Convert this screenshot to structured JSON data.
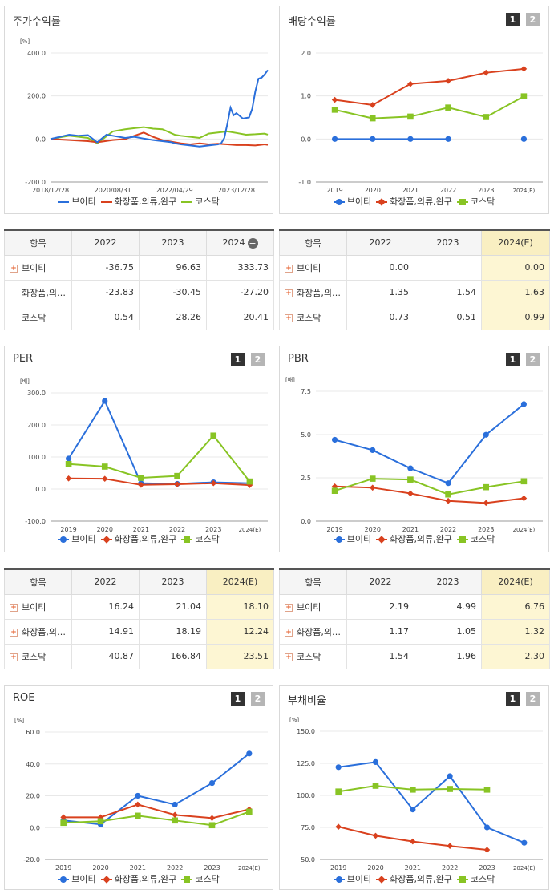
{
  "colors": {
    "s1": "#2a6fdb",
    "s2": "#d9411e",
    "s3": "#88c424"
  },
  "legend": [
    "브이티",
    "화장품,의류,완구",
    "코스닥"
  ],
  "panels": {
    "stock": {
      "title": "주가수익률"
    },
    "div": {
      "title": "배당수익률",
      "pages": [
        "1",
        "2"
      ]
    },
    "per": {
      "title": "PER",
      "pages": [
        "1",
        "2"
      ]
    },
    "pbr": {
      "title": "PBR",
      "pages": [
        "1",
        "2"
      ]
    },
    "roe": {
      "title": "ROE",
      "pages": [
        "1",
        "2"
      ]
    },
    "debt": {
      "title": "부채비율",
      "pages": [
        "1",
        "2"
      ]
    }
  },
  "tables": {
    "stock": {
      "header": [
        "항목",
        "2022",
        "2023",
        "2024"
      ],
      "collapse_icon": "minus-circle-icon",
      "rows": [
        {
          "name": "브이티",
          "expand": true,
          "values": [
            "-36.75",
            "96.63",
            "333.73"
          ]
        },
        {
          "name": "화장품,의…",
          "expand": false,
          "values": [
            "-23.83",
            "-30.45",
            "-27.20"
          ]
        },
        {
          "name": "코스닥",
          "expand": false,
          "values": [
            "0.54",
            "28.26",
            "20.41"
          ]
        }
      ]
    },
    "div": {
      "header": [
        "항목",
        "2022",
        "2023",
        "2024(E)"
      ],
      "rows": [
        {
          "name": "브이티",
          "values": [
            "0.00",
            "",
            "0.00"
          ]
        },
        {
          "name": "화장품,의…",
          "values": [
            "1.35",
            "1.54",
            "1.63"
          ]
        },
        {
          "name": "코스닥",
          "values": [
            "0.73",
            "0.51",
            "0.99"
          ]
        }
      ]
    },
    "per": {
      "header": [
        "항목",
        "2022",
        "2023",
        "2024(E)"
      ],
      "rows": [
        {
          "name": "브이티",
          "values": [
            "16.24",
            "21.04",
            "18.10"
          ]
        },
        {
          "name": "화장품,의…",
          "values": [
            "14.91",
            "18.19",
            "12.24"
          ]
        },
        {
          "name": "코스닥",
          "values": [
            "40.87",
            "166.84",
            "23.51"
          ]
        }
      ]
    },
    "pbr": {
      "header": [
        "항목",
        "2022",
        "2023",
        "2024(E)"
      ],
      "rows": [
        {
          "name": "브이티",
          "values": [
            "2.19",
            "4.99",
            "6.76"
          ]
        },
        {
          "name": "화장품,의…",
          "values": [
            "1.17",
            "1.05",
            "1.32"
          ]
        },
        {
          "name": "코스닥",
          "values": [
            "1.54",
            "1.96",
            "2.30"
          ]
        }
      ]
    }
  },
  "chart_data": [
    {
      "id": "stock",
      "type": "line",
      "title": "주가수익률",
      "unit": "[%]",
      "ylim": [
        -200,
        400
      ],
      "yticks": [
        -200,
        0,
        200,
        400
      ],
      "ytick_labels": [
        "-200.0",
        "0.0",
        "200.0",
        "400.0"
      ],
      "xlim": [
        "2018-12-28",
        "2024-10-31"
      ],
      "xtick_labels": [
        "2018/12/28",
        "2020/08/31",
        "2022/04/29",
        "2023/12/28"
      ],
      "series": [
        {
          "name": "브이티",
          "color": "#2a6fdb",
          "x": [
            "2018-12-28",
            "2019-03-31",
            "2019-06-30",
            "2019-09-30",
            "2019-12-31",
            "2020-03-31",
            "2020-06-30",
            "2020-08-31",
            "2020-12-31",
            "2021-03-31",
            "2021-06-30",
            "2021-09-30",
            "2021-12-31",
            "2022-03-31",
            "2022-04-29",
            "2022-06-30",
            "2022-09-30",
            "2022-12-31",
            "2023-03-31",
            "2023-06-30",
            "2023-07-31",
            "2023-08-31",
            "2023-09-30",
            "2023-10-31",
            "2023-11-30",
            "2023-12-28",
            "2024-02-29",
            "2024-04-30",
            "2024-05-31",
            "2024-06-30",
            "2024-07-31",
            "2024-08-31",
            "2024-09-30",
            "2024-10-31"
          ],
          "y": [
            0,
            10,
            20,
            15,
            18,
            -15,
            20,
            15,
            5,
            10,
            2,
            -5,
            -10,
            -15,
            -20,
            -25,
            -30,
            -35,
            -30,
            -25,
            -20,
            5,
            70,
            145,
            110,
            120,
            95,
            100,
            140,
            220,
            280,
            285,
            300,
            320
          ]
        },
        {
          "name": "화장품,의류,완구",
          "color": "#d9411e",
          "x": [
            "2018-12-28",
            "2019-06-30",
            "2019-12-31",
            "2020-03-31",
            "2020-08-31",
            "2020-12-31",
            "2021-03-31",
            "2021-06-30",
            "2021-09-30",
            "2021-12-31",
            "2022-04-29",
            "2022-06-30",
            "2022-09-30",
            "2022-12-31",
            "2023-03-31",
            "2023-06-30",
            "2023-09-30",
            "2023-12-28",
            "2024-03-31",
            "2024-06-30",
            "2024-09-30",
            "2024-10-31"
          ],
          "y": [
            0,
            -5,
            -10,
            -15,
            -5,
            0,
            15,
            30,
            10,
            -5,
            -15,
            -20,
            -25,
            -20,
            -25,
            -22,
            -25,
            -28,
            -28,
            -30,
            -25,
            -27
          ]
        },
        {
          "name": "코스닥",
          "color": "#88c424",
          "x": [
            "2018-12-28",
            "2019-06-30",
            "2019-12-31",
            "2020-03-31",
            "2020-08-31",
            "2020-12-31",
            "2021-03-31",
            "2021-06-30",
            "2021-09-30",
            "2021-12-31",
            "2022-04-29",
            "2022-06-30",
            "2022-09-30",
            "2022-12-31",
            "2023-03-31",
            "2023-06-30",
            "2023-09-30",
            "2023-12-28",
            "2024-03-31",
            "2024-06-30",
            "2024-09-30",
            "2024-10-31"
          ],
          "y": [
            0,
            15,
            5,
            -20,
            35,
            45,
            50,
            55,
            48,
            45,
            20,
            15,
            10,
            5,
            25,
            30,
            35,
            28,
            20,
            22,
            25,
            20
          ]
        }
      ]
    },
    {
      "id": "div",
      "type": "line",
      "title": "배당수익률",
      "ylim": [
        -1,
        2
      ],
      "yticks": [
        -1,
        0,
        1,
        2
      ],
      "ytick_labels": [
        "-1.0",
        "0.0",
        "1.0",
        "2.0"
      ],
      "categories": [
        "2019",
        "2020",
        "2021",
        "2022",
        "2023",
        "2024(E)"
      ],
      "series": [
        {
          "name": "브이티",
          "color": "#2a6fdb",
          "marker": "circle",
          "values": [
            0.0,
            0.0,
            0.0,
            0.0,
            null,
            0.0
          ]
        },
        {
          "name": "화장품,의류,완구",
          "color": "#d9411e",
          "marker": "diamond",
          "values": [
            0.91,
            0.79,
            1.28,
            1.35,
            1.54,
            1.63
          ]
        },
        {
          "name": "코스닥",
          "color": "#88c424",
          "marker": "square",
          "values": [
            0.68,
            0.48,
            0.52,
            0.73,
            0.51,
            0.99
          ]
        }
      ]
    },
    {
      "id": "per",
      "type": "line",
      "title": "PER",
      "unit": "[배]",
      "ylim": [
        -100,
        300
      ],
      "yticks": [
        -100,
        0,
        100,
        200,
        300
      ],
      "ytick_labels": [
        "-100.0",
        "0.0",
        "100.0",
        "200.0",
        "300.0"
      ],
      "categories": [
        "2019",
        "2020",
        "2021",
        "2022",
        "2023",
        "2024(E)"
      ],
      "series": [
        {
          "name": "브이티",
          "color": "#2a6fdb",
          "marker": "circle",
          "values": [
            95,
            275,
            18,
            16.24,
            21.04,
            18.1
          ]
        },
        {
          "name": "화장품,의류,완구",
          "color": "#d9411e",
          "marker": "diamond",
          "values": [
            33,
            32,
            13,
            14.91,
            18.19,
            12.24
          ]
        },
        {
          "name": "코스닥",
          "color": "#88c424",
          "marker": "square",
          "values": [
            78,
            70,
            35,
            40.87,
            166.84,
            23.51
          ]
        }
      ]
    },
    {
      "id": "pbr",
      "type": "line",
      "title": "PBR",
      "unit": "[배]",
      "ylim": [
        0,
        7.5
      ],
      "yticks": [
        0,
        2.5,
        5,
        7.5
      ],
      "ytick_labels": [
        "0.0",
        "2.5",
        "5.0",
        "7.5"
      ],
      "categories": [
        "2019",
        "2020",
        "2021",
        "2022",
        "2023",
        "2024(E)"
      ],
      "series": [
        {
          "name": "브이티",
          "color": "#2a6fdb",
          "marker": "circle",
          "values": [
            4.7,
            4.1,
            3.05,
            2.19,
            4.99,
            6.76
          ]
        },
        {
          "name": "화장품,의류,완구",
          "color": "#d9411e",
          "marker": "diamond",
          "values": [
            2.0,
            1.93,
            1.6,
            1.17,
            1.05,
            1.32
          ]
        },
        {
          "name": "코스닥",
          "color": "#88c424",
          "marker": "square",
          "values": [
            1.75,
            2.45,
            2.4,
            1.54,
            1.96,
            2.3
          ]
        }
      ]
    },
    {
      "id": "roe",
      "type": "line",
      "title": "ROE",
      "unit": "[%]",
      "ylim": [
        -20,
        60
      ],
      "yticks": [
        -20,
        0,
        20,
        40,
        60
      ],
      "ytick_labels": [
        "-20.0",
        "0.0",
        "20.0",
        "40.0",
        "60.0"
      ],
      "categories": [
        "2019",
        "2020",
        "2021",
        "2022",
        "2023",
        "2024(E)"
      ],
      "series": [
        {
          "name": "브이티",
          "color": "#2a6fdb",
          "marker": "circle",
          "values": [
            4.5,
            2.0,
            20.0,
            14.5,
            28.0,
            46.5
          ]
        },
        {
          "name": "화장품,의류,완구",
          "color": "#d9411e",
          "marker": "diamond",
          "values": [
            6.5,
            6.5,
            14.5,
            8.0,
            6.0,
            11.5
          ]
        },
        {
          "name": "코스닥",
          "color": "#88c424",
          "marker": "square",
          "values": [
            3.0,
            4.0,
            7.5,
            4.5,
            1.5,
            10.0
          ]
        }
      ]
    },
    {
      "id": "debt",
      "type": "line",
      "title": "부채비율",
      "unit": "[%]",
      "ylim": [
        50,
        150
      ],
      "yticks": [
        50,
        75,
        100,
        125,
        150
      ],
      "ytick_labels": [
        "50.0",
        "75.0",
        "100.0",
        "125.0",
        "150.0"
      ],
      "categories": [
        "2019",
        "2020",
        "2021",
        "2022",
        "2023",
        "2024(E)"
      ],
      "series": [
        {
          "name": "브이티",
          "color": "#2a6fdb",
          "marker": "circle",
          "values": [
            122,
            126,
            89,
            115,
            75,
            63
          ]
        },
        {
          "name": "화장품,의류,완구",
          "color": "#d9411e",
          "marker": "diamond",
          "values": [
            75.5,
            68.5,
            64,
            60.5,
            57.5,
            null
          ]
        },
        {
          "name": "코스닥",
          "color": "#88c424",
          "marker": "square",
          "values": [
            103,
            107.5,
            104.5,
            105,
            104.5,
            null
          ]
        }
      ]
    }
  ]
}
